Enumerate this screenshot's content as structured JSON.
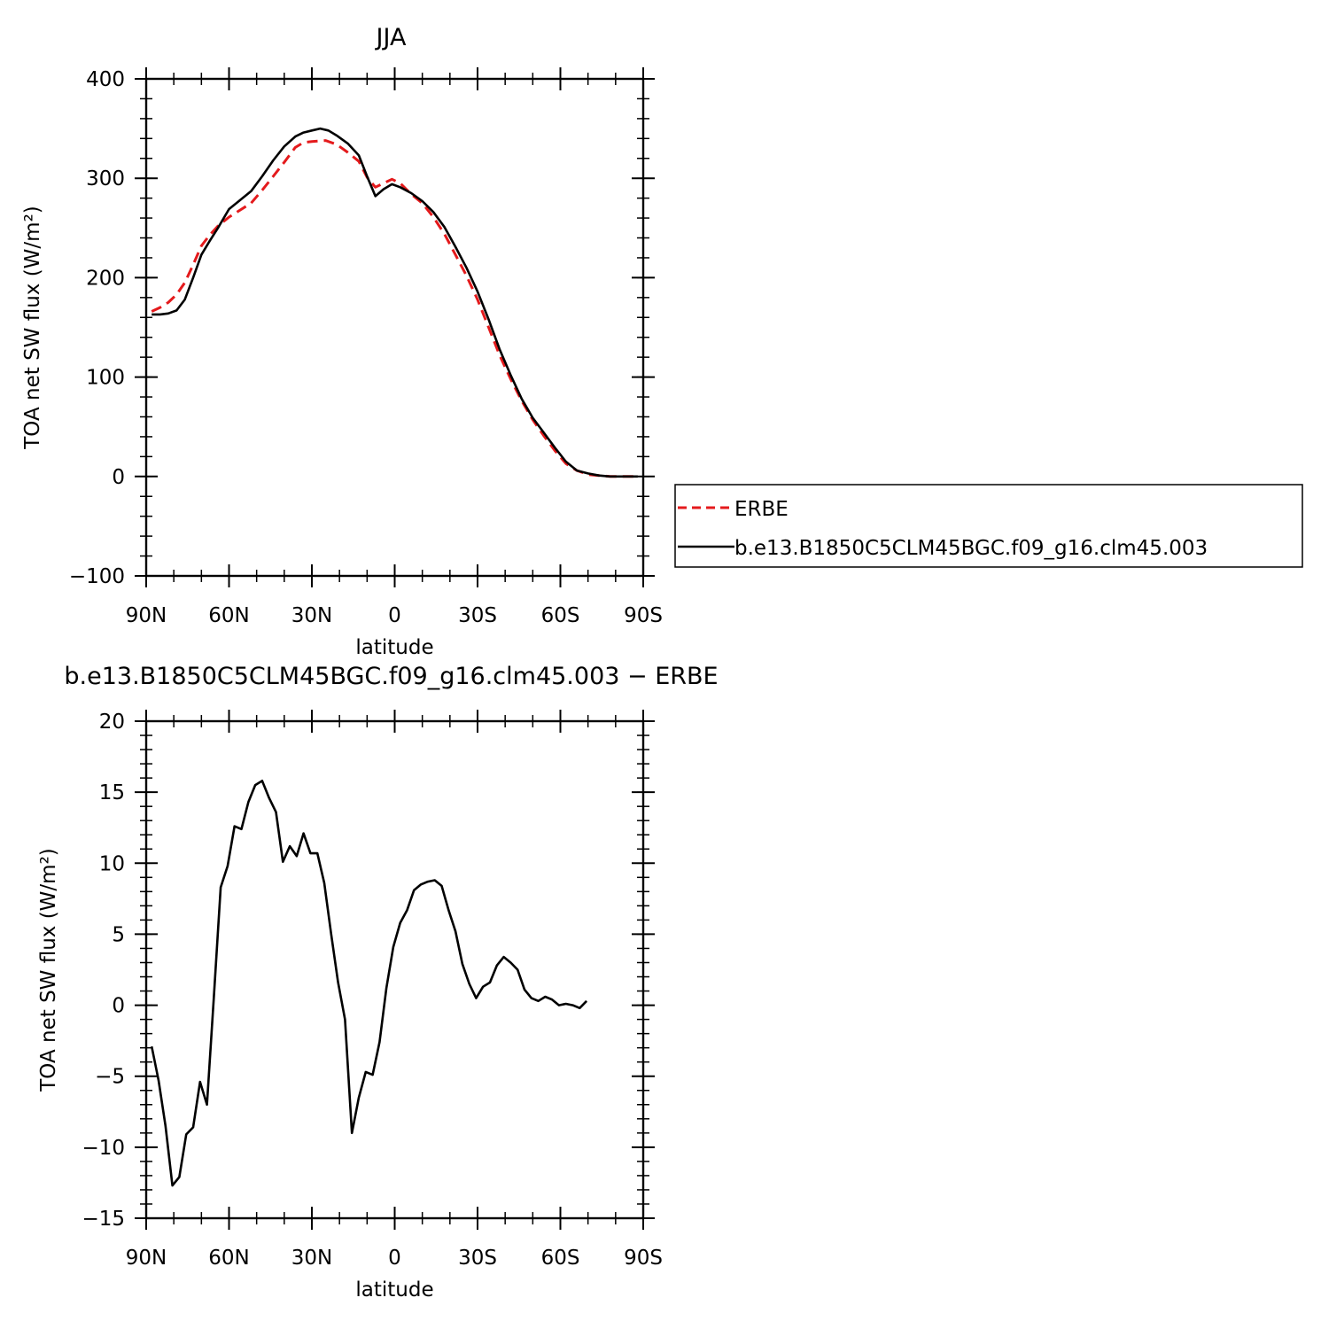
{
  "chart_data": [
    {
      "type": "line",
      "title": "JJA",
      "xlabel": "latitude",
      "ylabel": "TOA net SW flux (W/m²)",
      "xlim": [
        -90,
        90
      ],
      "ylim": [
        -100,
        400
      ],
      "x_tick_values": [
        -90,
        -60,
        -30,
        0,
        30,
        60,
        90
      ],
      "x_tick_labels": [
        "90N",
        "60N",
        "30N",
        "0",
        "30S",
        "60S",
        "90S"
      ],
      "y_tick_values": [
        -100,
        0,
        100,
        200,
        300,
        400
      ],
      "y_tick_labels": [
        "−100",
        "0",
        "100",
        "200",
        "300",
        "400"
      ],
      "legend_placement": "right, outside plot",
      "series": [
        {
          "name": "ERBE",
          "color": "#e41a1c",
          "dash": true,
          "points": [
            [
              -88,
              166
            ],
            [
              -85,
              170
            ],
            [
              -82,
              175
            ],
            [
              -79,
              183
            ],
            [
              -76,
              195
            ],
            [
              -73,
              213
            ],
            [
              -70,
              232
            ],
            [
              -67,
              243
            ],
            [
              -64,
              252
            ],
            [
              -60,
              261
            ],
            [
              -56,
              268
            ],
            [
              -52,
              275
            ],
            [
              -48,
              288
            ],
            [
              -44,
              302
            ],
            [
              -40,
              316
            ],
            [
              -36,
              331
            ],
            [
              -33,
              336
            ],
            [
              -30,
              337
            ],
            [
              -25,
              338
            ],
            [
              -21,
              334
            ],
            [
              -17,
              326
            ],
            [
              -13,
              317
            ],
            [
              -10,
              301
            ],
            [
              -7,
              291
            ],
            [
              -4,
              295
            ],
            [
              -1,
              299
            ],
            [
              2,
              295
            ],
            [
              6,
              284
            ],
            [
              10,
              275
            ],
            [
              14,
              261
            ],
            [
              18,
              244
            ],
            [
              22,
              223
            ],
            [
              26,
              202
            ],
            [
              30,
              178
            ],
            [
              34,
              150
            ],
            [
              38,
              122
            ],
            [
              42,
              98
            ],
            [
              46,
              76
            ],
            [
              50,
              57
            ],
            [
              54,
              41
            ],
            [
              58,
              26
            ],
            [
              62,
              13
            ],
            [
              66,
              6
            ],
            [
              70,
              2
            ],
            [
              74,
              1
            ],
            [
              78,
              0
            ],
            [
              82,
              0
            ],
            [
              86,
              0
            ],
            [
              88,
              0
            ]
          ]
        },
        {
          "name": "b.e13.B1850C5CLM45BGC.f09_g16.clm45.003",
          "color": "#000000",
          "dash": false,
          "points": [
            [
              -88,
              163
            ],
            [
              -85,
              163
            ],
            [
              -82,
              164
            ],
            [
              -79,
              167
            ],
            [
              -76,
              178
            ],
            [
              -73,
              200
            ],
            [
              -70,
              223
            ],
            [
              -67,
              237
            ],
            [
              -64,
              250
            ],
            [
              -60,
              269
            ],
            [
              -56,
              278
            ],
            [
              -52,
              287
            ],
            [
              -48,
              302
            ],
            [
              -44,
              318
            ],
            [
              -40,
              332
            ],
            [
              -36,
              342
            ],
            [
              -33,
              346
            ],
            [
              -30,
              348
            ],
            [
              -27,
              350
            ],
            [
              -24,
              348
            ],
            [
              -21,
              343
            ],
            [
              -17,
              335
            ],
            [
              -13,
              323
            ],
            [
              -10,
              302
            ],
            [
              -7,
              282
            ],
            [
              -4,
              289
            ],
            [
              -1,
              294
            ],
            [
              2,
              291
            ],
            [
              6,
              285
            ],
            [
              10,
              277
            ],
            [
              14,
              266
            ],
            [
              18,
              251
            ],
            [
              22,
              231
            ],
            [
              26,
              210
            ],
            [
              30,
              186
            ],
            [
              34,
              158
            ],
            [
              38,
              128
            ],
            [
              42,
              102
            ],
            [
              46,
              78
            ],
            [
              50,
              59
            ],
            [
              54,
              44
            ],
            [
              58,
              29
            ],
            [
              62,
              15
            ],
            [
              66,
              6
            ],
            [
              70,
              3
            ],
            [
              74,
              1
            ],
            [
              78,
              0
            ],
            [
              82,
              0
            ],
            [
              86,
              0
            ],
            [
              88,
              0
            ]
          ]
        }
      ]
    },
    {
      "type": "line",
      "title": "b.e13.B1850C5CLM45BGC.f09_g16.clm45.003 − ERBE",
      "xlabel": "latitude",
      "ylabel": "TOA net SW flux (W/m²)",
      "xlim": [
        -90,
        90
      ],
      "ylim": [
        -15,
        20
      ],
      "x_tick_values": [
        -90,
        -60,
        -30,
        0,
        30,
        60,
        90
      ],
      "x_tick_labels": [
        "90N",
        "60N",
        "30N",
        "0",
        "30S",
        "60S",
        "90S"
      ],
      "y_tick_values": [
        -15,
        -10,
        -5,
        0,
        5,
        10,
        15,
        20
      ],
      "y_tick_labels": [
        "−15",
        "−10",
        "−5",
        "0",
        "5",
        "10",
        "15",
        "20"
      ],
      "series": [
        {
          "color": "#000000",
          "dash": false,
          "points": [
            [
              -88,
              -2.9
            ],
            [
              -85.5,
              -5.3
            ],
            [
              -83,
              -8.5
            ],
            [
              -80.5,
              -12.7
            ],
            [
              -78,
              -12.1
            ],
            [
              -75.5,
              -9.1
            ],
            [
              -73,
              -8.6
            ],
            [
              -70.5,
              -5.4
            ],
            [
              -68,
              -7.0
            ],
            [
              -65.5,
              0.6
            ],
            [
              -63,
              8.3
            ],
            [
              -60.5,
              9.8
            ],
            [
              -58,
              12.6
            ],
            [
              -55.5,
              12.4
            ],
            [
              -53,
              14.3
            ],
            [
              -50.5,
              15.5
            ],
            [
              -48,
              15.8
            ],
            [
              -45.5,
              14.6
            ],
            [
              -43,
              13.6
            ],
            [
              -40.5,
              10.1
            ],
            [
              -38,
              11.2
            ],
            [
              -35.5,
              10.5
            ],
            [
              -33,
              12.1
            ],
            [
              -30.5,
              10.7
            ],
            [
              -28,
              10.7
            ],
            [
              -25.5,
              8.6
            ],
            [
              -23,
              5.0
            ],
            [
              -20.5,
              1.6
            ],
            [
              -18,
              -1.0
            ],
            [
              -15.5,
              -9.0
            ],
            [
              -13,
              -6.5
            ],
            [
              -10.5,
              -4.7
            ],
            [
              -8,
              -4.9
            ],
            [
              -5.5,
              -2.6
            ],
            [
              -3,
              1.2
            ],
            [
              -0.5,
              4.1
            ],
            [
              2,
              5.8
            ],
            [
              4.5,
              6.7
            ],
            [
              7,
              8.1
            ],
            [
              9.5,
              8.5
            ],
            [
              12,
              8.7
            ],
            [
              14.5,
              8.8
            ],
            [
              17,
              8.4
            ],
            [
              19.5,
              6.7
            ],
            [
              22,
              5.2
            ],
            [
              24.5,
              2.9
            ],
            [
              27,
              1.5
            ],
            [
              29.5,
              0.5
            ],
            [
              32,
              1.3
            ],
            [
              34.5,
              1.6
            ],
            [
              37,
              2.8
            ],
            [
              39.5,
              3.4
            ],
            [
              42,
              3.0
            ],
            [
              44.5,
              2.5
            ],
            [
              47,
              1.1
            ],
            [
              49.5,
              0.5
            ],
            [
              52,
              0.3
            ],
            [
              54.5,
              0.6
            ],
            [
              57,
              0.4
            ],
            [
              59.5,
              0.0
            ],
            [
              62,
              0.1
            ],
            [
              64.5,
              0.0
            ],
            [
              67,
              -0.2
            ],
            [
              69.5,
              0.3
            ]
          ]
        }
      ]
    }
  ]
}
